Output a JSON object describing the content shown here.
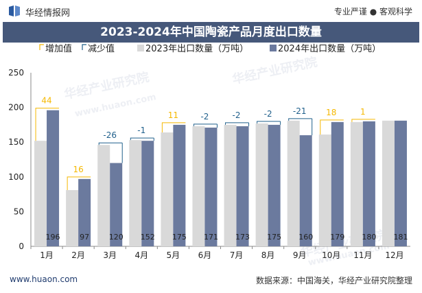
{
  "header": {
    "brand": "华经情报网",
    "tagline": "专业严谨 ● 客观科学",
    "title": "2023-2024年中国陶瓷产品月度出口数量"
  },
  "footer": {
    "url": "www.huaon.com",
    "source": "数据来源：中国海关，华经产业研究院整理"
  },
  "watermark": {
    "cn": "华经产业研究院",
    "url": "www.huaon.com"
  },
  "colors": {
    "title_bg": "#46587a",
    "series_2023": "#d9d9d9",
    "series_2024": "#6b7a9e",
    "increase": "#f5b800",
    "decrease": "#1f5f8b"
  },
  "chart_data": {
    "type": "bar",
    "title": "2023-2024年中国陶瓷产品月度出口数量",
    "legend": [
      "增加值",
      "减少值",
      "2023年出口数量（万吨）",
      "2024年出口数量（万吨）"
    ],
    "legend_position": "top",
    "categories": [
      "1月",
      "2月",
      "3月",
      "4月",
      "5月",
      "6月",
      "7月",
      "8月",
      "9月",
      "10月",
      "11月",
      "12月"
    ],
    "series": [
      {
        "name": "2023年出口数量（万吨）",
        "values": [
          152,
          81,
          146,
          153,
          164,
          173,
          175,
          177,
          181,
          161,
          179,
          181
        ]
      },
      {
        "name": "2024年出口数量（万吨）",
        "values": [
          196,
          97,
          120,
          152,
          175,
          171,
          173,
          175,
          160,
          179,
          180,
          181
        ]
      }
    ],
    "bar_labels_2024": [
      "196",
      "97",
      "120",
      "152",
      "175",
      "171",
      "173",
      "175",
      "160",
      "179",
      "180",
      "181"
    ],
    "changes": [
      "44",
      "16",
      "-26",
      "-1",
      "11",
      "-2",
      "-2",
      "-2",
      "-21",
      "18",
      "1",
      null
    ],
    "y_ticks": [
      "0",
      "50",
      "100",
      "150",
      "200",
      "250"
    ],
    "ylim": [
      0,
      250
    ],
    "grid": false
  }
}
